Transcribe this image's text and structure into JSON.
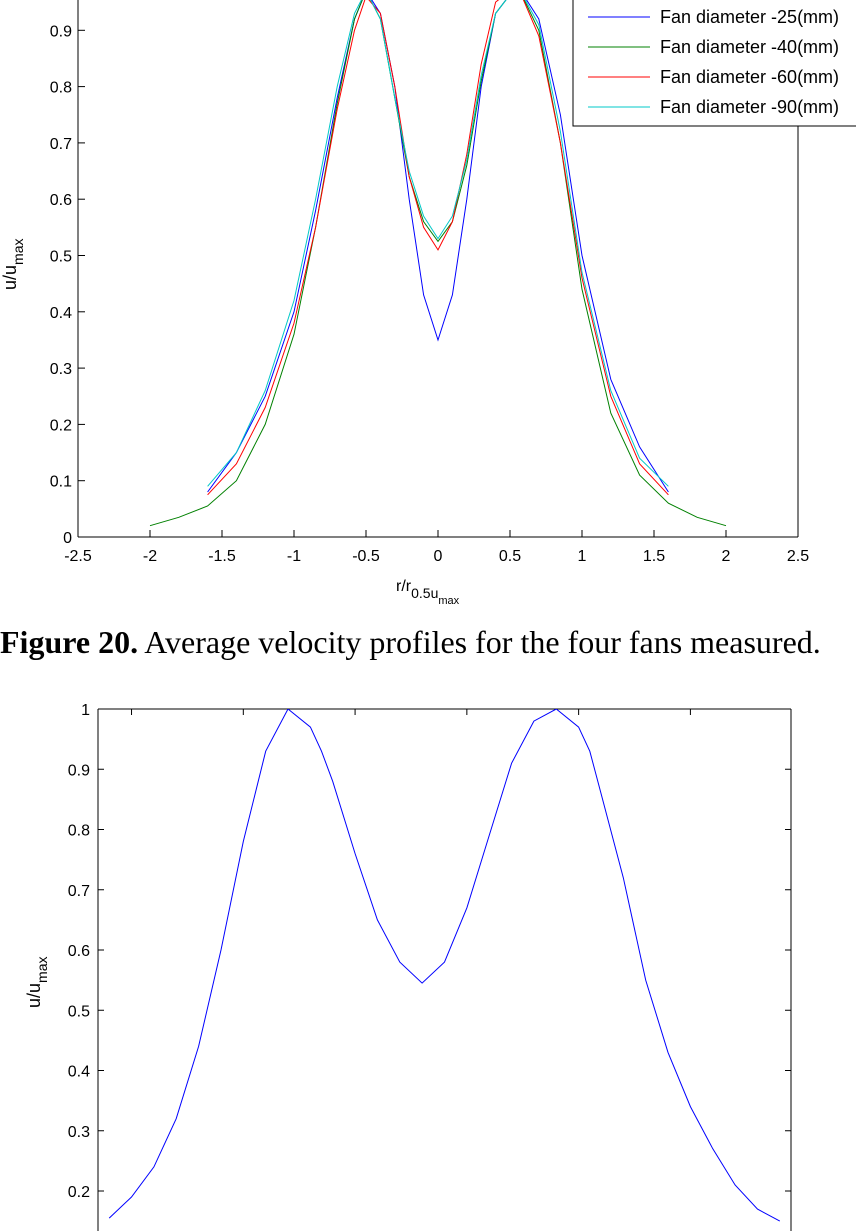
{
  "figure1": {
    "caption_label": "Figure 20.",
    "caption_text": " Average velocity profiles for the four fans measured.",
    "chart_data": {
      "type": "line",
      "xlabel": "r/r",
      "xlabel_sub": "0.5u",
      "xlabel_subsub": "max",
      "ylabel": "u/u",
      "ylabel_sub": "max",
      "xlim": [
        -2.5,
        2.5
      ],
      "ylim": [
        0,
        1
      ],
      "xticks": [
        -2.5,
        -2,
        -1.5,
        -1,
        -0.5,
        0,
        0.5,
        1,
        1.5,
        2,
        2.5
      ],
      "xtick_labels": [
        "-2.5",
        "-2",
        "-1.5",
        "-1",
        "-0.5",
        "0",
        "0.5",
        "1",
        "1.5",
        "2",
        "2.5"
      ],
      "yticks": [
        0,
        0.1,
        0.2,
        0.3,
        0.4,
        0.5,
        0.6,
        0.7,
        0.8,
        0.9
      ],
      "ytick_labels": [
        "0",
        "0.1",
        "0.2",
        "0.3",
        "0.4",
        "0.5",
        "0.6",
        "0.7",
        "0.8",
        "0.9"
      ],
      "legend_position": "top-right",
      "series": [
        {
          "name": "Fan diameter -25(mm)",
          "color": "#0000ff",
          "x": [
            -1.6,
            -1.4,
            -1.2,
            -1.0,
            -0.85,
            -0.7,
            -0.58,
            -0.5,
            -0.4,
            -0.3,
            -0.2,
            -0.1,
            0.0,
            0.1,
            0.2,
            0.3,
            0.4,
            0.55,
            0.7,
            0.85,
            1.0,
            1.2,
            1.4,
            1.6
          ],
          "y": [
            0.08,
            0.15,
            0.25,
            0.4,
            0.58,
            0.78,
            0.92,
            0.97,
            0.93,
            0.8,
            0.6,
            0.43,
            0.35,
            0.43,
            0.6,
            0.8,
            0.93,
            0.98,
            0.92,
            0.75,
            0.5,
            0.28,
            0.16,
            0.08
          ]
        },
        {
          "name": "Fan diameter -40(mm)",
          "color": "#008000",
          "x": [
            -2.0,
            -1.8,
            -1.6,
            -1.4,
            -1.2,
            -1.0,
            -0.85,
            -0.7,
            -0.58,
            -0.5,
            -0.4,
            -0.3,
            -0.2,
            -0.1,
            0.0,
            0.1,
            0.2,
            0.3,
            0.4,
            0.55,
            0.7,
            0.85,
            1.0,
            1.2,
            1.4,
            1.6,
            1.8,
            2.0
          ],
          "y": [
            0.02,
            0.035,
            0.055,
            0.1,
            0.2,
            0.36,
            0.55,
            0.77,
            0.92,
            0.97,
            0.92,
            0.78,
            0.64,
            0.56,
            0.525,
            0.56,
            0.66,
            0.81,
            0.93,
            0.98,
            0.9,
            0.7,
            0.44,
            0.22,
            0.11,
            0.06,
            0.035,
            0.02
          ]
        },
        {
          "name": "Fan diameter -60(mm)",
          "color": "#ff0000",
          "x": [
            -1.6,
            -1.4,
            -1.2,
            -1.0,
            -0.85,
            -0.7,
            -0.58,
            -0.5,
            -0.4,
            -0.3,
            -0.2,
            -0.1,
            0.0,
            0.1,
            0.2,
            0.3,
            0.4,
            0.55,
            0.7,
            0.85,
            1.0,
            1.2,
            1.4,
            1.6
          ],
          "y": [
            0.075,
            0.13,
            0.23,
            0.38,
            0.55,
            0.76,
            0.9,
            0.96,
            0.93,
            0.8,
            0.64,
            0.55,
            0.51,
            0.56,
            0.68,
            0.84,
            0.95,
            0.98,
            0.89,
            0.7,
            0.46,
            0.25,
            0.13,
            0.075
          ]
        },
        {
          "name": "Fan diameter -90(mm)",
          "color": "#00c8c8",
          "x": [
            -1.6,
            -1.4,
            -1.2,
            -1.0,
            -0.85,
            -0.7,
            -0.58,
            -0.5,
            -0.4,
            -0.3,
            -0.2,
            -0.1,
            0.0,
            0.1,
            0.2,
            0.3,
            0.4,
            0.55,
            0.7,
            0.85,
            1.0,
            1.2,
            1.4,
            1.6
          ],
          "y": [
            0.09,
            0.15,
            0.26,
            0.42,
            0.6,
            0.8,
            0.93,
            0.97,
            0.92,
            0.78,
            0.65,
            0.57,
            0.53,
            0.57,
            0.67,
            0.82,
            0.93,
            0.98,
            0.91,
            0.72,
            0.47,
            0.26,
            0.14,
            0.09
          ]
        }
      ]
    }
  },
  "figure2": {
    "chart_data": {
      "type": "line",
      "ylabel": "u/u",
      "ylabel_sub": "max",
      "ylim": [
        0.15,
        1
      ],
      "yticks": [
        0.2,
        0.3,
        0.4,
        0.5,
        0.6,
        0.7,
        0.8,
        0.9,
        1
      ],
      "ytick_labels": [
        "0.2",
        "0.3",
        "0.4",
        "0.5",
        "0.6",
        "0.7",
        "0.8",
        "0.9",
        "1"
      ],
      "xlim": [
        -1.65,
        1.45
      ],
      "xticks": [
        -1.5,
        -1.0,
        -0.5,
        0.0,
        0.5,
        1.0
      ],
      "series": [
        {
          "name": "",
          "color": "#0000ff",
          "x": [
            -1.6,
            -1.5,
            -1.4,
            -1.3,
            -1.2,
            -1.1,
            -1.0,
            -0.9,
            -0.8,
            -0.7,
            -0.65,
            -0.6,
            -0.5,
            -0.4,
            -0.3,
            -0.2,
            -0.1,
            0.0,
            0.1,
            0.2,
            0.3,
            0.4,
            0.5,
            0.55,
            0.6,
            0.7,
            0.8,
            0.9,
            1.0,
            1.1,
            1.2,
            1.3,
            1.4
          ],
          "y": [
            0.155,
            0.19,
            0.24,
            0.32,
            0.44,
            0.6,
            0.78,
            0.93,
            1.0,
            0.97,
            0.93,
            0.88,
            0.76,
            0.65,
            0.58,
            0.545,
            0.58,
            0.67,
            0.79,
            0.91,
            0.98,
            1.0,
            0.97,
            0.93,
            0.86,
            0.72,
            0.55,
            0.43,
            0.34,
            0.27,
            0.21,
            0.17,
            0.15
          ]
        }
      ]
    }
  }
}
